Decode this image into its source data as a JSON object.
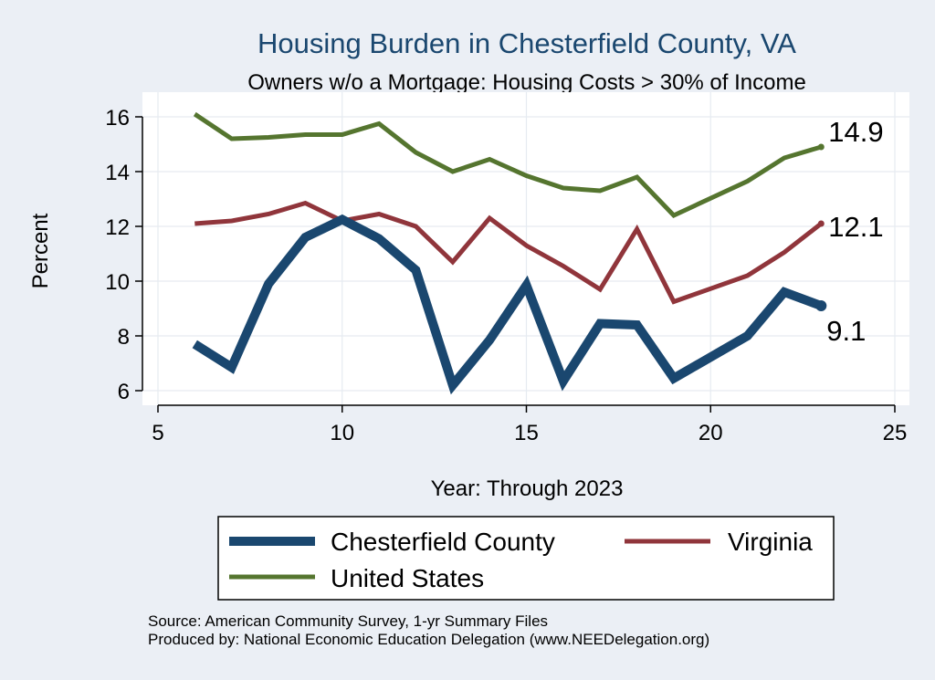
{
  "chart_data": {
    "type": "line",
    "title": "Housing Burden in Chesterfield County, VA",
    "subtitle": "Owners w/o a Mortgage: Housing Costs > 30% of Income",
    "xlabel": "Year: Through 2023",
    "ylabel": "Percent",
    "xlim": [
      5,
      25
    ],
    "ylim": [
      5.6,
      16.4
    ],
    "xticks": [
      5,
      10,
      15,
      20,
      25
    ],
    "yticks": [
      6,
      8,
      10,
      12,
      14,
      16
    ],
    "grid": true,
    "legend_position": "bottom",
    "series": [
      {
        "name": "Chesterfield County",
        "color": "#1a476f",
        "x": [
          6,
          7,
          8,
          9,
          10,
          11,
          12,
          13,
          14,
          15,
          16,
          17,
          18,
          19,
          21,
          22,
          23
        ],
        "y": [
          7.7,
          6.85,
          9.9,
          11.6,
          12.25,
          11.55,
          10.4,
          6.2,
          7.85,
          9.85,
          6.35,
          8.45,
          8.4,
          6.45,
          8.0,
          9.6,
          9.1
        ],
        "end_label": "9.1"
      },
      {
        "name": "Virginia",
        "color": "#90353b",
        "x": [
          6,
          7,
          8,
          9,
          10,
          11,
          12,
          13,
          14,
          15,
          16,
          17,
          18,
          19,
          21,
          22,
          23
        ],
        "y": [
          12.1,
          12.2,
          12.45,
          12.85,
          12.2,
          12.45,
          12.0,
          10.7,
          12.3,
          11.3,
          10.55,
          9.7,
          11.9,
          9.25,
          10.2,
          11.05,
          12.1
        ],
        "end_label": "12.1"
      },
      {
        "name": "United States",
        "color": "#55752f",
        "x": [
          6,
          7,
          8,
          9,
          10,
          11,
          12,
          13,
          14,
          15,
          16,
          17,
          18,
          19,
          21,
          22,
          23
        ],
        "y": [
          16.1,
          15.2,
          15.25,
          15.35,
          15.35,
          15.75,
          14.7,
          14.0,
          14.45,
          13.85,
          13.4,
          13.3,
          13.8,
          12.4,
          13.65,
          14.5,
          14.9
        ],
        "end_label": "14.9"
      }
    ]
  },
  "notes": [
    "Source: American Community Survey, 1-yr Summary Files",
    "Produced by: National Economic Education Delegation (www.NEEDelegation.org)"
  ],
  "colors": {
    "background": "#ebeff5",
    "plot_area": "#ffffff",
    "title": "#1a476f",
    "grid": "#e6ebf1"
  }
}
